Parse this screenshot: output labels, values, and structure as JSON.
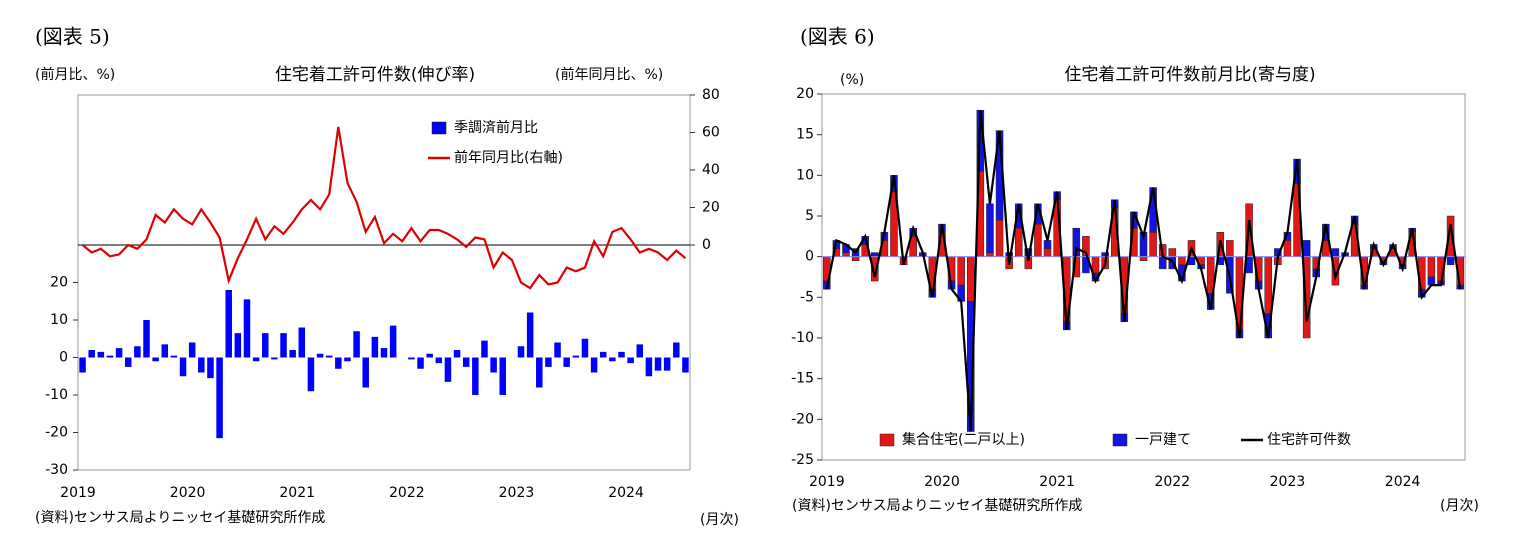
{
  "chart_data": [
    {
      "type": "bar",
      "label": "(図表 5)",
      "title": "住宅着工許可件数(伸び率)",
      "ylabel": "(前月比、%)",
      "y2label": "(前年同月比、%)",
      "xlabel": "(月次)",
      "source": "(資料)センサス局よりニッセイ基礎研究所作成",
      "categories": [
        "2019",
        null,
        null,
        null,
        null,
        null,
        null,
        null,
        null,
        null,
        null,
        null,
        "2020",
        null,
        null,
        null,
        null,
        null,
        null,
        null,
        null,
        null,
        null,
        null,
        "2021",
        null,
        null,
        null,
        null,
        null,
        null,
        null,
        null,
        null,
        null,
        null,
        "2022",
        null,
        null,
        null,
        null,
        null,
        null,
        null,
        null,
        null,
        null,
        null,
        "2023",
        null,
        null,
        null,
        null,
        null,
        null,
        null,
        null,
        null,
        null,
        null,
        "2024",
        null,
        null,
        null,
        null,
        null,
        null
      ],
      "series": [
        {
          "name": "季調済前月比",
          "type": "bar",
          "color": "#0000ff",
          "values": [
            -4,
            2,
            1.5,
            0.5,
            2.5,
            -2.5,
            3,
            10,
            -1,
            3.5,
            0.5,
            -5,
            4,
            -4,
            -5.5,
            -21.5,
            18,
            6.5,
            15.5,
            -1,
            6.5,
            -0.5,
            6.5,
            2,
            8,
            -9,
            1,
            0.5,
            -3,
            -1,
            7,
            -8,
            5.5,
            2.5,
            8.5,
            0,
            -0.5,
            -3,
            1,
            -1.5,
            -6.5,
            2,
            -2.5,
            -10,
            4.5,
            -4,
            -10,
            0,
            3,
            12,
            -8,
            -2.5,
            4,
            -2.5,
            0.5,
            5,
            -4,
            1.5,
            -1,
            1.5,
            -1.5,
            3.5,
            -5,
            -3.5,
            -3.5,
            4,
            -4
          ]
        },
        {
          "name": "前年同月比(右軸)",
          "type": "line",
          "color": "#e00000",
          "axis": "y2",
          "values": [
            0,
            -4,
            -2,
            -6,
            -5,
            0,
            -2,
            3,
            16,
            12,
            19,
            14,
            11,
            19,
            12,
            4,
            -19,
            -7,
            3,
            14,
            3,
            10,
            6,
            12,
            19,
            24,
            19,
            27,
            63,
            33,
            23,
            7,
            15,
            1,
            6,
            2,
            9,
            2,
            8,
            8,
            6,
            3,
            -1,
            4,
            3,
            -12,
            -4,
            -8,
            -20,
            -23,
            -16,
            -21,
            -20,
            -12,
            -14,
            -12,
            2,
            -6,
            7,
            9,
            3,
            -4,
            -2,
            -4,
            -8,
            -3,
            -7
          ]
        }
      ],
      "ylim": [
        -30,
        70
      ],
      "yticks": [
        -30,
        -20,
        -10,
        0,
        10,
        20
      ],
      "y2lim": [
        -120,
        80
      ],
      "y2ticks": [
        0,
        20,
        40,
        60,
        80
      ],
      "stacked": false,
      "legend": "upper right"
    },
    {
      "type": "bar",
      "label": "(図表 6)",
      "title": "住宅着工許可件数前月比(寄与度)",
      "ylabel": "(%)",
      "xlabel": "(月次)",
      "source": "(資料)センサス局よりニッセイ基礎研究所作成",
      "categories": [
        "2019",
        null,
        null,
        null,
        null,
        null,
        null,
        null,
        null,
        null,
        null,
        null,
        "2020",
        null,
        null,
        null,
        null,
        null,
        null,
        null,
        null,
        null,
        null,
        null,
        "2021",
        null,
        null,
        null,
        null,
        null,
        null,
        null,
        null,
        null,
        null,
        null,
        "2022",
        null,
        null,
        null,
        null,
        null,
        null,
        null,
        null,
        null,
        null,
        null,
        "2023",
        null,
        null,
        null,
        null,
        null,
        null,
        null,
        null,
        null,
        null,
        null,
        "2024",
        null,
        null,
        null,
        null,
        null,
        null
      ],
      "series": [
        {
          "name": "集合住宅(二戸以上)",
          "type": "bar",
          "color": "#e01818",
          "values": [
            -3,
            1,
            0.5,
            -0.5,
            1.5,
            -3,
            2,
            8,
            -1,
            2.5,
            0,
            -4,
            3,
            -3,
            -3.5,
            -5.5,
            10.5,
            0.5,
            4.5,
            -1.5,
            3.5,
            -1.5,
            4,
            1,
            7,
            -8,
            -2.5,
            2.5,
            -2,
            -1.5,
            6,
            -7,
            3.5,
            -0.5,
            3,
            1.5,
            1,
            -1,
            2,
            -1,
            -4.5,
            3,
            2,
            -9,
            6.5,
            -3,
            -7,
            -1,
            2,
            9,
            -10,
            -1.5,
            2,
            -3.5,
            0,
            4,
            -3.5,
            1,
            -0.5,
            1,
            -1,
            3,
            -4,
            -2.5,
            -3,
            5,
            -3.5
          ]
        },
        {
          "name": "一戸建て",
          "type": "bar",
          "color": "#1414e0",
          "values": [
            -1,
            1,
            1,
            1,
            1,
            0.5,
            1,
            2,
            0,
            1,
            0.5,
            -1,
            1,
            -1,
            -2,
            -16,
            7.5,
            6,
            11,
            0.5,
            3,
            1,
            2.5,
            1,
            1,
            -1,
            3.5,
            -2,
            -1,
            0.5,
            1,
            -1,
            2,
            3,
            5.5,
            -1.5,
            -1.5,
            -2,
            -1,
            -0.5,
            -2,
            -1,
            -4.5,
            -1,
            -2,
            -1,
            -3,
            1,
            1,
            3,
            2,
            -1,
            2,
            1,
            0.5,
            1,
            -0.5,
            0.5,
            -0.5,
            0.5,
            -0.5,
            0.5,
            -1,
            -1,
            -0.5,
            -1,
            -0.5
          ]
        },
        {
          "name": "住宅許可件数",
          "type": "line",
          "color": "#000000",
          "values": [
            -4,
            2,
            1.5,
            0.5,
            2.5,
            -2.5,
            3,
            10,
            -1,
            3.5,
            0.5,
            -5,
            4,
            -4,
            -5.5,
            -21.5,
            18,
            6.5,
            15.5,
            -1,
            6.5,
            -0.5,
            6.5,
            2,
            8,
            -9,
            1,
            0.5,
            -3,
            -1,
            7,
            -8,
            5.5,
            2.5,
            8.5,
            0,
            -0.5,
            -3,
            1,
            -1.5,
            -6.5,
            2,
            -2.5,
            -10,
            4.5,
            -4,
            -10,
            0,
            3,
            12,
            -8,
            -2.5,
            4,
            -2.5,
            0.5,
            5,
            -4,
            1.5,
            -1,
            1.5,
            -1.5,
            3.5,
            -5,
            -3.5,
            -3.5,
            4,
            -4
          ]
        }
      ],
      "ylim": [
        -25,
        20
      ],
      "yticks": [
        -25,
        -20,
        -15,
        -10,
        -5,
        0,
        5,
        10,
        15,
        20
      ],
      "stacked": true,
      "legend": "lower center"
    }
  ]
}
